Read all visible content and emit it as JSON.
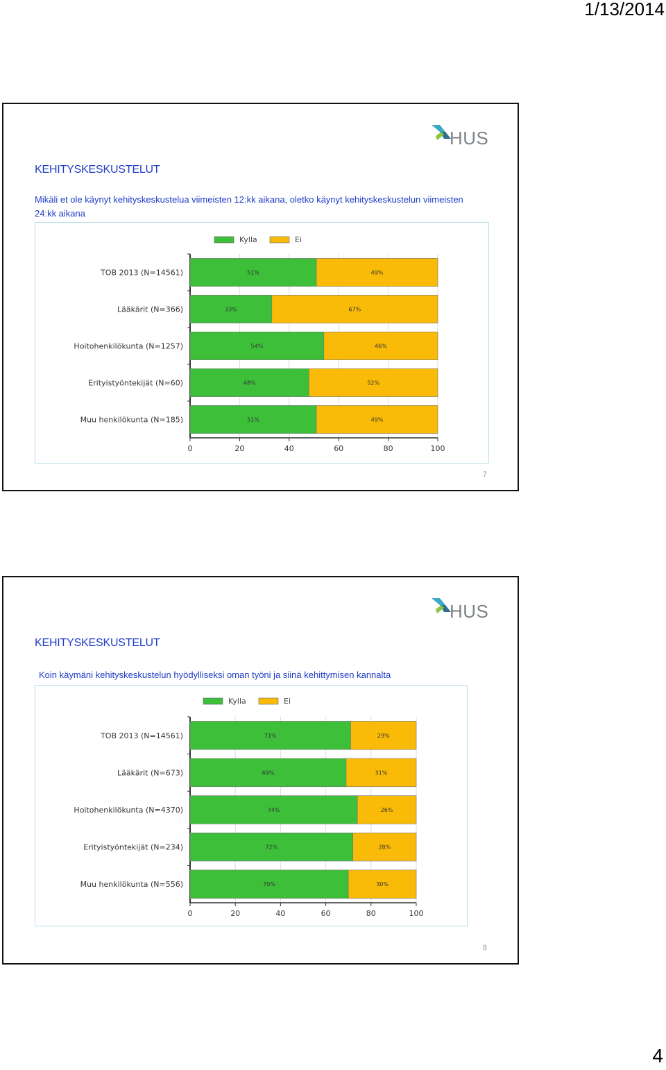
{
  "header": {
    "date": "1/13/2014"
  },
  "footer": {
    "page_number": "4"
  },
  "slides": [
    {
      "title": "KEHITYSKESKUSTELUT",
      "question": "Mikäli et ole käynyt kehityskeskustelua viimeisten 12:kk aikana, oletko käynyt kehityskeskustelun viimeisten 24:kk aikana",
      "slide_number": "7",
      "logo_text": "HUS"
    },
    {
      "title": "KEHITYSKESKUSTELUT",
      "question": "Koin käymäni kehityskeskustelun hyödylliseksi oman työni ja siinä kehittymisen kannalta",
      "slide_number": "8",
      "logo_text": "HUS"
    }
  ],
  "colors": {
    "kylla": "#3dbf3a",
    "ei": "#f9bb07",
    "title": "#1f3cc8"
  },
  "chart_data": [
    {
      "type": "bar",
      "stacked": true,
      "orientation": "horizontal",
      "categories": [
        "TOB 2013 (N=14561)",
        "Lääkärit (N=366)",
        "Hoitohenkilökunta (N=1257)",
        "Erityistyöntekijät (N=60)",
        "Muu henkilökunta (N=185)"
      ],
      "series": [
        {
          "name": "Kylla",
          "values": [
            51,
            33,
            54,
            48,
            51
          ],
          "labels": [
            "51%",
            "33%",
            "54%",
            "48%",
            "51%"
          ]
        },
        {
          "name": "Ei",
          "values": [
            49,
            67,
            46,
            52,
            49
          ],
          "labels": [
            "49%",
            "67%",
            "46%",
            "52%",
            "49%"
          ]
        }
      ],
      "xlim": [
        0,
        100
      ],
      "xticks": [
        "0",
        "20",
        "40",
        "60",
        "80",
        "100"
      ],
      "legend": "top",
      "grid": true
    },
    {
      "type": "bar",
      "stacked": true,
      "orientation": "horizontal",
      "categories": [
        "TOB 2013 (N=14561)",
        "Lääkärit (N=673)",
        "Hoitohenkilökunta (N=4370)",
        "Erityistyöntekijät (N=234)",
        "Muu henkilökunta (N=556)"
      ],
      "series": [
        {
          "name": "Kylla",
          "values": [
            71,
            69,
            74,
            72,
            70
          ],
          "labels": [
            "71%",
            "69%",
            "74%",
            "72%",
            "70%"
          ]
        },
        {
          "name": "Ei",
          "values": [
            29,
            31,
            26,
            28,
            30
          ],
          "labels": [
            "29%",
            "31%",
            "26%",
            "28%",
            "30%"
          ]
        }
      ],
      "xlim": [
        0,
        100
      ],
      "xticks": [
        "0",
        "20",
        "40",
        "60",
        "80",
        "100"
      ],
      "legend": "top",
      "grid": true
    }
  ]
}
